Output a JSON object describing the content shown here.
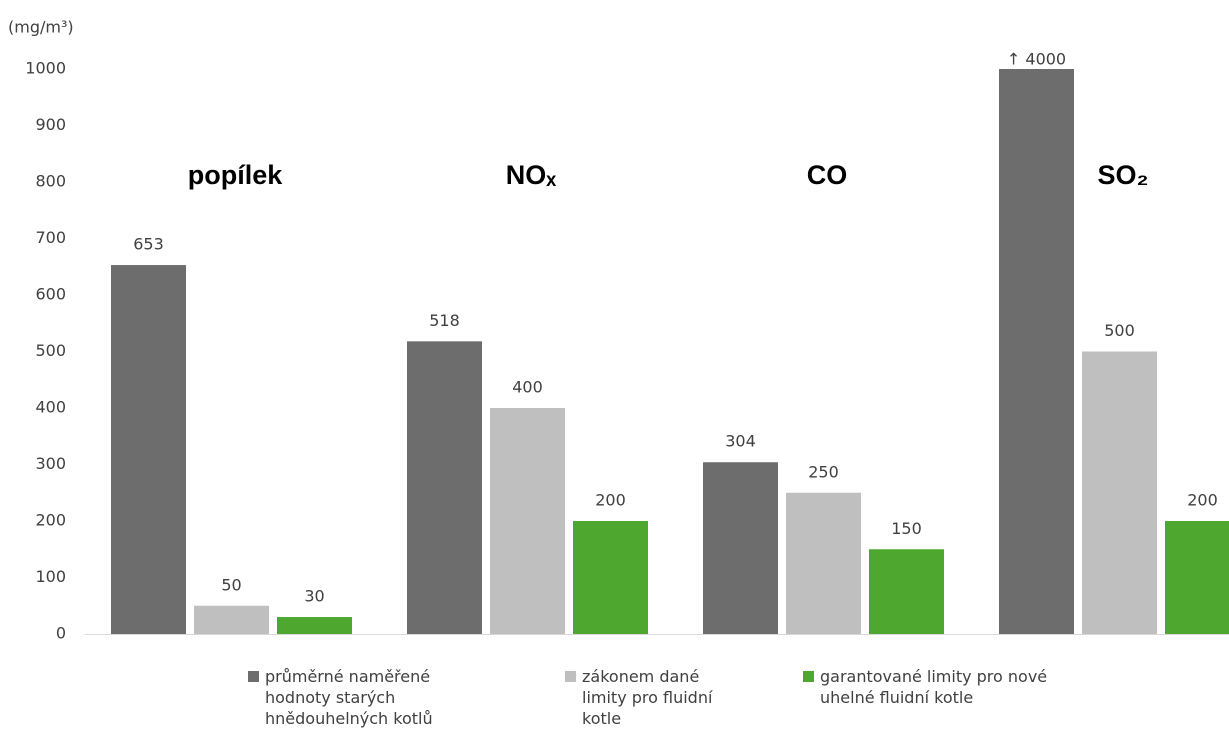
{
  "chart_data": {
    "type": "bar",
    "y_label": "(mg/m³)",
    "categories": [
      "popílek",
      "NOₓ",
      "CO",
      "SO₂"
    ],
    "series": [
      {
        "name": "průměrné naměřené hodnoty starých hnědouhelných kotlů",
        "color": "#6d6d6d",
        "values": [
          653,
          518,
          304,
          4000
        ],
        "value_labels": [
          "653",
          "518",
          "304",
          "↑ 4000"
        ]
      },
      {
        "name": "zákonem dané limity pro fluidní kotle",
        "color": "#bfbfbf",
        "values": [
          50,
          400,
          250,
          500
        ]
      },
      {
        "name": "garantované limity pro nové uhelné fluidní kotle",
        "color": "#4ea72e",
        "values": [
          30,
          200,
          150,
          200
        ]
      }
    ],
    "ylim": [
      0,
      1000
    ],
    "yticks": [
      0,
      100,
      200,
      300,
      400,
      500,
      600,
      700,
      800,
      900,
      1000
    ],
    "grid": false,
    "legend": "bottom"
  }
}
